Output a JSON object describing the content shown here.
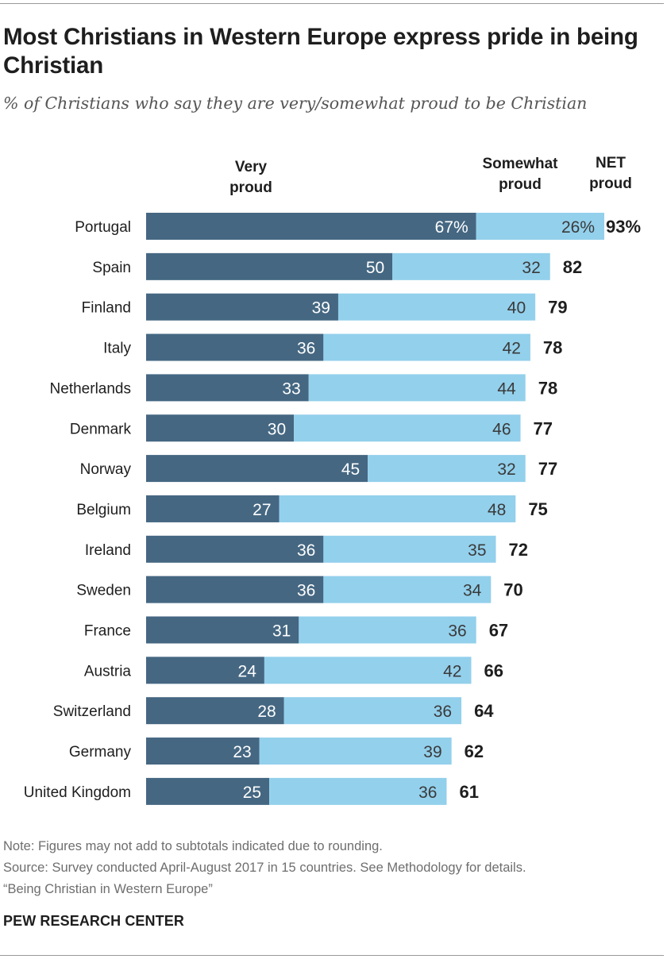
{
  "title": "Most Christians in Western Europe express pride in being Christian",
  "subtitle": "% of Christians who say they are very/somewhat proud to be Christian",
  "colors": {
    "very": "#456782",
    "somewhat": "#93d0ec",
    "label_on_dark": "#ffffff",
    "label_on_light": "#3a3a3a"
  },
  "chart_data": {
    "type": "bar",
    "orientation": "horizontal",
    "stacked": true,
    "categories": [
      "Portugal",
      "Spain",
      "Finland",
      "Italy",
      "Netherlands",
      "Denmark",
      "Norway",
      "Belgium",
      "Ireland",
      "Sweden",
      "France",
      "Austria",
      "Switzerland",
      "Germany",
      "United Kingdom"
    ],
    "series": [
      {
        "name_lines": [
          "Very",
          "proud"
        ],
        "values": [
          67,
          50,
          39,
          36,
          33,
          30,
          45,
          27,
          36,
          36,
          31,
          24,
          28,
          23,
          25
        ],
        "labels": [
          "67%",
          "50",
          "39",
          "36",
          "33",
          "30",
          "45",
          "27",
          "36",
          "36",
          "31",
          "24",
          "28",
          "23",
          "25"
        ]
      },
      {
        "name_lines": [
          "Somewhat",
          "proud"
        ],
        "values": [
          26,
          32,
          40,
          42,
          44,
          46,
          32,
          48,
          35,
          34,
          36,
          42,
          36,
          39,
          36
        ],
        "labels": [
          "26%",
          "32",
          "40",
          "42",
          "44",
          "46",
          "32",
          "48",
          "35",
          "34",
          "36",
          "42",
          "36",
          "39",
          "36"
        ]
      }
    ],
    "net": {
      "name_lines": [
        "NET",
        "proud"
      ],
      "values": [
        93,
        82,
        79,
        78,
        78,
        77,
        77,
        75,
        72,
        70,
        67,
        66,
        64,
        62,
        61
      ],
      "labels": [
        "93%",
        "82",
        "79",
        "78",
        "78",
        "77",
        "77",
        "75",
        "72",
        "70",
        "67",
        "66",
        "64",
        "62",
        "61"
      ]
    },
    "xlim": [
      0,
      93
    ],
    "grid": false,
    "legend": "column headers above bars"
  },
  "notes": {
    "note": "Note: Figures may not add to subtotals indicated due to rounding.",
    "source": "Source: Survey conducted April-August 2017 in 15 countries. See Methodology for details.",
    "report": "“Being Christian in Western Europe”"
  },
  "org": "PEW RESEARCH CENTER"
}
